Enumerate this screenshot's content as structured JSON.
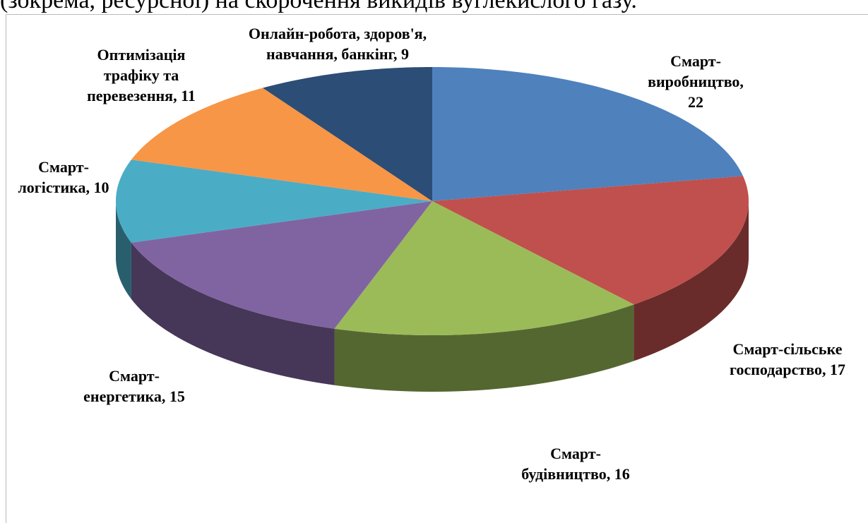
{
  "header_text": "(зокрема, ресурсної) на скорочення викидів вуглекислого газу.",
  "chart_data": {
    "type": "pie",
    "categories": [
      "Смарт-виробництво,",
      "Смарт-сільське господарство,",
      "Смарт-будівництво,",
      "Смарт-енергетика,",
      "Смарт-логістика,",
      "Оптимізація трафіку та перевезення,",
      "Онлайн-робота, здоров'я, навчання, банкінг,"
    ],
    "values": [
      22,
      17,
      16,
      15,
      10,
      11,
      9
    ],
    "colors": [
      "#4f81bd",
      "#c0504d",
      "#9bbb59",
      "#8064a2",
      "#4bacc6",
      "#f79646",
      "#2c4d75"
    ]
  }
}
